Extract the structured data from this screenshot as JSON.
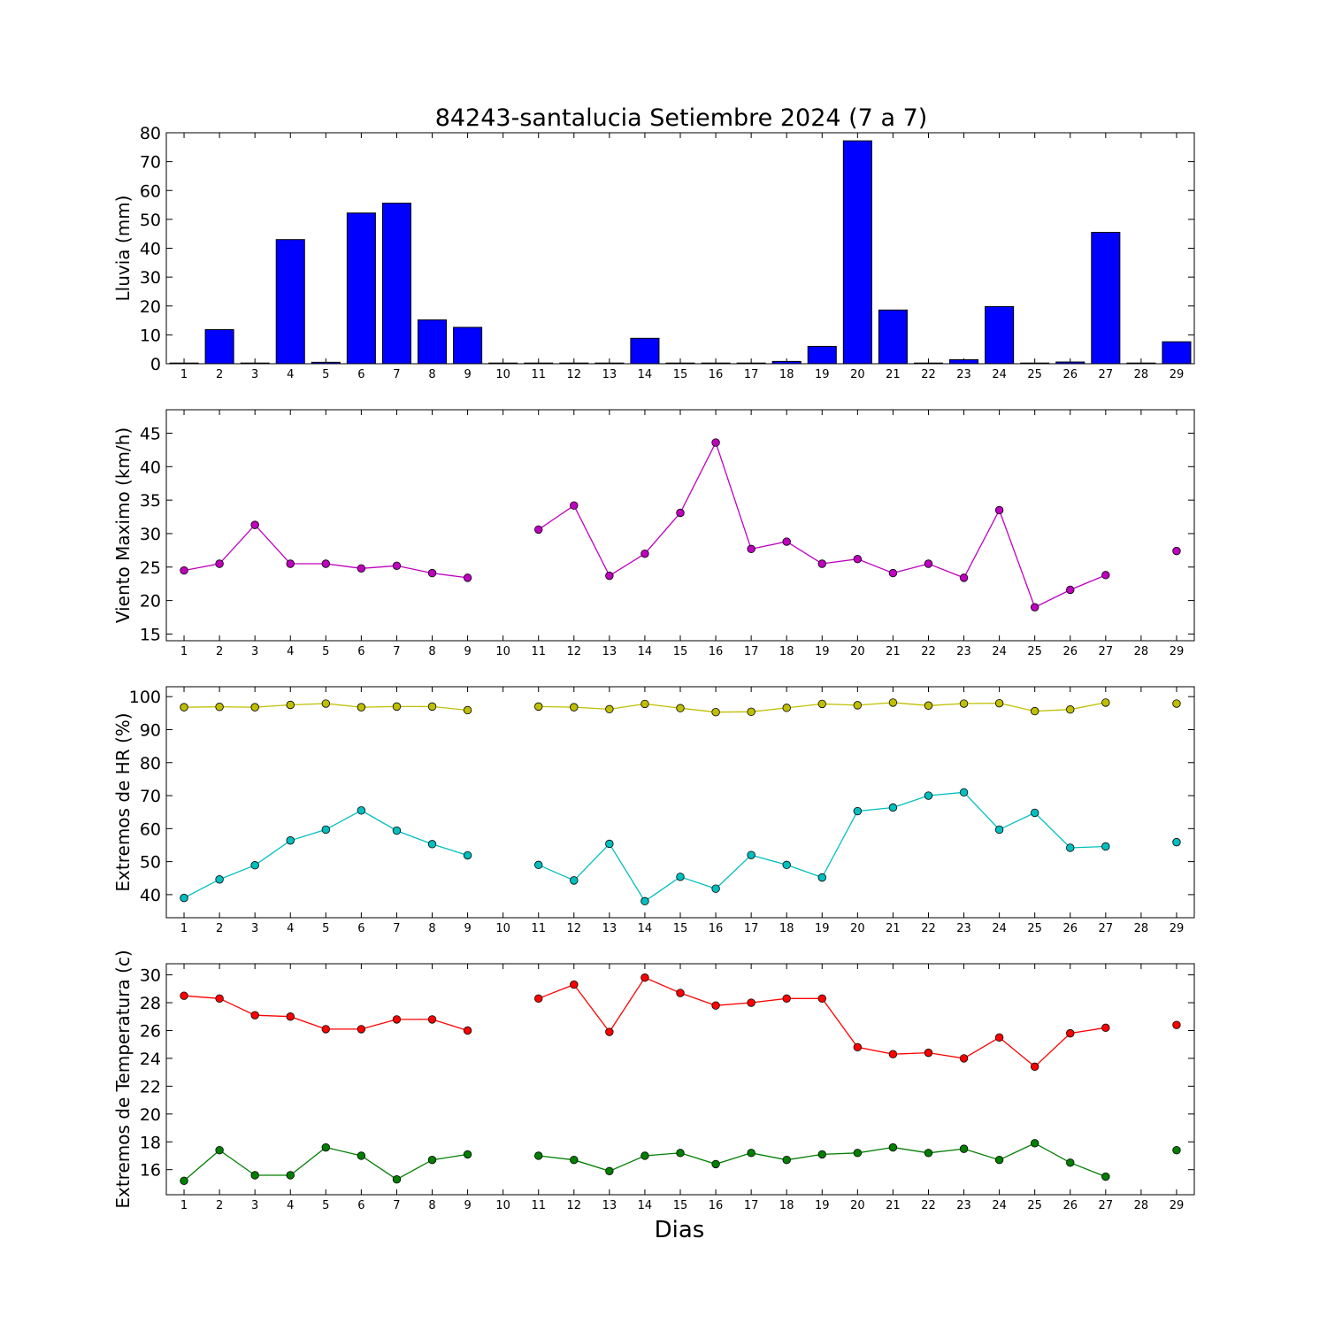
{
  "title": "84243-santalucia Setiembre 2024  (7 a 7)",
  "xlabel": "Dias",
  "chart_data": [
    {
      "type": "bar",
      "ylabel": "Lluvia (mm)",
      "ylim": [
        0,
        80
      ],
      "yticks": [
        0,
        10,
        20,
        30,
        40,
        50,
        60,
        70,
        80
      ],
      "xlim": [
        0.5,
        29.5
      ],
      "x": [
        1,
        2,
        3,
        4,
        5,
        6,
        7,
        8,
        9,
        10,
        11,
        12,
        13,
        14,
        15,
        16,
        17,
        18,
        19,
        20,
        21,
        22,
        23,
        24,
        25,
        26,
        27,
        28,
        29
      ],
      "xtick_labels": [
        "1",
        "2",
        "3",
        "4",
        "5",
        "6",
        "7",
        "8",
        "9",
        "10",
        "11",
        "12",
        "13",
        "14",
        "15",
        "16",
        "17",
        "18",
        "19",
        "20",
        "21",
        "22",
        "23",
        "24",
        "25",
        "26",
        "27",
        "28",
        "29"
      ],
      "series": [
        {
          "values": [
            0.2,
            11.8,
            0.2,
            43,
            0.5,
            52.2,
            55.6,
            15.2,
            12.6,
            0,
            0,
            0,
            0.2,
            8.8,
            0.2,
            0,
            0,
            0.8,
            6,
            77.2,
            18.6,
            0.2,
            1.4,
            19.8,
            0,
            0.6,
            45.5,
            0,
            7.6
          ],
          "color": "#0000ff"
        }
      ]
    },
    {
      "type": "line",
      "ylabel": "Viento Maximo (km/h)",
      "ylim": [
        14,
        48.5
      ],
      "yticks": [
        15,
        20,
        25,
        30,
        35,
        40,
        45
      ],
      "xlim": [
        0.5,
        29.5
      ],
      "xtick_labels": [
        "1",
        "2",
        "3",
        "4",
        "5",
        "6",
        "7",
        "8",
        "9",
        "10",
        "11",
        "12",
        "13",
        "14",
        "15",
        "16",
        "17",
        "18",
        "19",
        "20",
        "21",
        "22",
        "23",
        "24",
        "25",
        "26",
        "27",
        "28",
        "29"
      ],
      "x": [
        1,
        2,
        3,
        4,
        5,
        6,
        7,
        8,
        9,
        10,
        11,
        12,
        13,
        14,
        15,
        16,
        17,
        18,
        19,
        20,
        21,
        22,
        23,
        24,
        25,
        26,
        27,
        28,
        29
      ],
      "series": [
        {
          "values": [
            24.5,
            25.5,
            31.3,
            25.5,
            25.5,
            24.8,
            25.2,
            24.1,
            23.4,
            null,
            30.6,
            34.2,
            23.7,
            27,
            33.1,
            43.6,
            27.7,
            28.8,
            25.5,
            26.2,
            24.1,
            25.5,
            23.4,
            33.5,
            19,
            21.6,
            23.8,
            null,
            27.4
          ],
          "color": "#bf00bf"
        }
      ]
    },
    {
      "type": "line",
      "ylabel": "Extremos de HR (%)",
      "ylim": [
        33,
        103
      ],
      "yticks": [
        40,
        50,
        60,
        70,
        80,
        90,
        100
      ],
      "xlim": [
        0.5,
        29.5
      ],
      "xtick_labels": [
        "1",
        "2",
        "3",
        "4",
        "5",
        "6",
        "7",
        "8",
        "9",
        "10",
        "11",
        "12",
        "13",
        "14",
        "15",
        "16",
        "17",
        "18",
        "19",
        "20",
        "21",
        "22",
        "23",
        "24",
        "25",
        "26",
        "27",
        "28",
        "29"
      ],
      "x": [
        1,
        2,
        3,
        4,
        5,
        6,
        7,
        8,
        9,
        10,
        11,
        12,
        13,
        14,
        15,
        16,
        17,
        18,
        19,
        20,
        21,
        22,
        23,
        24,
        25,
        26,
        27,
        28,
        29
      ],
      "series": [
        {
          "values": [
            96.8,
            96.9,
            96.8,
            97.5,
            97.9,
            96.8,
            97,
            97,
            95.9,
            null,
            97,
            96.8,
            96.2,
            97.8,
            96.5,
            95.3,
            95.4,
            96.6,
            97.8,
            97.4,
            98.2,
            97.3,
            97.9,
            98,
            95.6,
            96.1,
            98.2,
            null,
            97.9
          ],
          "color": "#bfbf00"
        },
        {
          "values": [
            39,
            44.6,
            48.9,
            56.4,
            59.7,
            65.5,
            59.4,
            55.3,
            51.9,
            null,
            49,
            44.3,
            55.4,
            38,
            45.4,
            41.8,
            52,
            49,
            45.2,
            65.3,
            66.4,
            70,
            71,
            59.7,
            64.8,
            54.2,
            54.6,
            null,
            55.9
          ],
          "color": "#00bfbf"
        }
      ]
    },
    {
      "type": "line",
      "ylabel": "Extremos de Temperatura (c)",
      "ylim": [
        14.2,
        30.8
      ],
      "yticks": [
        16,
        18,
        20,
        22,
        24,
        26,
        28,
        30
      ],
      "xlim": [
        0.5,
        29.5
      ],
      "xtick_labels": [
        "1",
        "2",
        "3",
        "4",
        "5",
        "6",
        "7",
        "8",
        "9",
        "10",
        "11",
        "12",
        "13",
        "14",
        "15",
        "16",
        "17",
        "18",
        "19",
        "20",
        "21",
        "22",
        "23",
        "24",
        "25",
        "26",
        "27",
        "28",
        "29"
      ],
      "x": [
        1,
        2,
        3,
        4,
        5,
        6,
        7,
        8,
        9,
        10,
        11,
        12,
        13,
        14,
        15,
        16,
        17,
        18,
        19,
        20,
        21,
        22,
        23,
        24,
        25,
        26,
        27,
        28,
        29
      ],
      "series": [
        {
          "values": [
            28.5,
            28.3,
            27.1,
            27,
            26.1,
            26.1,
            26.8,
            26.8,
            26,
            null,
            28.3,
            29.3,
            25.9,
            29.8,
            28.7,
            27.8,
            28,
            28.3,
            28.3,
            24.8,
            24.3,
            24.4,
            24,
            25.5,
            23.4,
            25.8,
            26.2,
            null,
            26.4
          ],
          "color": "#ff0000"
        },
        {
          "values": [
            15.2,
            17.4,
            15.6,
            15.6,
            17.6,
            17,
            15.3,
            16.7,
            17.1,
            null,
            17,
            16.7,
            15.9,
            17,
            17.2,
            16.4,
            17.2,
            16.7,
            17.1,
            17.2,
            17.6,
            17.2,
            17.5,
            16.7,
            17.9,
            16.5,
            15.5,
            null,
            17.4
          ],
          "color": "#007f00"
        }
      ]
    }
  ]
}
